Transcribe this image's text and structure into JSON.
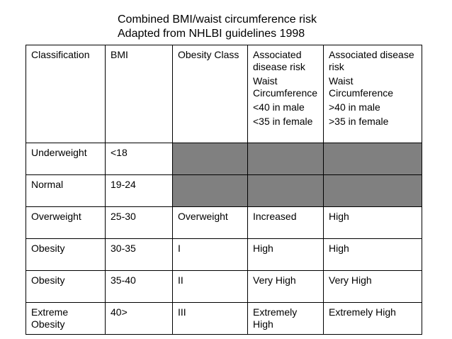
{
  "title": {
    "line1": "Combined BMI/waist circumference risk",
    "line2": "Adapted from NHLBI guidelines 1998"
  },
  "table": {
    "headers": {
      "classification": "Classification",
      "bmi": "BMI",
      "obesity_class": "Obesity Class",
      "risk_small_waist": {
        "line1": "Associated",
        "line2": "disease risk",
        "line3": "Waist",
        "line4": "Circumference",
        "line5": "<40 in male",
        "line6": "<35 in female"
      },
      "risk_large_waist": {
        "line1": "Associated disease",
        "line2": "risk",
        "line3": "Waist",
        "line4": "Circumference",
        "line5": ">40 in male",
        ">line6": "",
        "line6": ">35 in female"
      }
    },
    "rows": [
      {
        "classification": "Underweight",
        "bmi": "<18",
        "obesity_class": "",
        "risk_small_waist": "",
        "risk_large_waist": "",
        "shaded": true
      },
      {
        "classification": "Normal",
        "bmi": "19-24",
        "obesity_class": "",
        "risk_small_waist": "",
        "risk_large_waist": "",
        "shaded": true
      },
      {
        "classification": "Overweight",
        "bmi": "25-30",
        "obesity_class": "Overweight",
        "risk_small_waist": "Increased",
        "risk_large_waist": "High",
        "shaded": false
      },
      {
        "classification": "Obesity",
        "bmi": "30-35",
        "obesity_class": "I",
        "risk_small_waist": "High",
        "risk_large_waist": "High",
        "shaded": false
      },
      {
        "classification": "Obesity",
        "bmi": "35-40",
        "obesity_class": "II",
        "risk_small_waist": "Very High",
        "risk_large_waist": "Very High",
        "shaded": false
      },
      {
        "classification": {
          "line1": "Extreme",
          "line2": "Obesity"
        },
        "bmi": "40>",
        "obesity_class": "III",
        "risk_small_waist": {
          "line1": "Extremely",
          "line2": "High"
        },
        "risk_large_waist": "Extremely High",
        "shaded": false
      }
    ]
  },
  "colors": {
    "shaded_cell": "#808080",
    "border": "#000000",
    "text": "#000000",
    "background": "#ffffff"
  }
}
